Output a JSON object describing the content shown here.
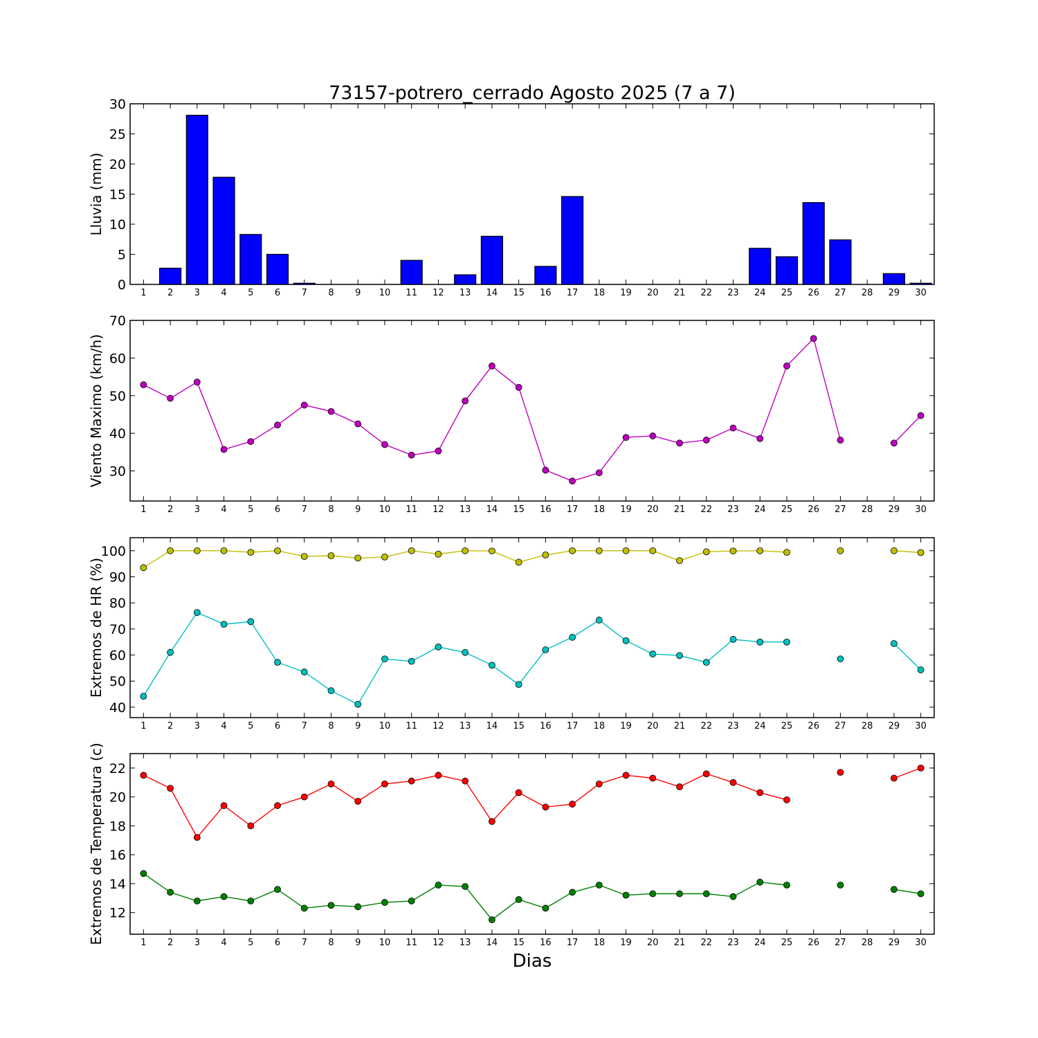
{
  "title": "73157-potrero_cerrado Agosto 2025  (7 a 7)",
  "xlabel": "Dias",
  "days": [
    1,
    2,
    3,
    4,
    5,
    6,
    7,
    8,
    9,
    10,
    11,
    12,
    13,
    14,
    15,
    16,
    17,
    18,
    19,
    20,
    21,
    22,
    23,
    24,
    25,
    26,
    27,
    28,
    29,
    30
  ],
  "chart_data": [
    {
      "type": "bar",
      "ylabel": "Lluvia (mm)",
      "ylim": [
        0,
        30
      ],
      "yticks": [
        0,
        5,
        10,
        15,
        20,
        25,
        30
      ],
      "series": [
        {
          "name": "Lluvia",
          "color": "#0000ff",
          "values": [
            0,
            2.7,
            28.1,
            17.8,
            8.3,
            5.0,
            0.2,
            0,
            0,
            0,
            4.0,
            0,
            1.6,
            8.0,
            0,
            3.0,
            14.6,
            0,
            0,
            0,
            0,
            0,
            0,
            6.0,
            4.6,
            13.6,
            7.4,
            0,
            1.8,
            0.2
          ]
        }
      ]
    },
    {
      "type": "line",
      "ylabel": "Viento Maximo (km/h)",
      "ylim": [
        22,
        70
      ],
      "yticks": [
        30,
        40,
        50,
        60,
        70
      ],
      "series": [
        {
          "name": "Viento Maximo",
          "color": "#bf00bf",
          "values": [
            52.9,
            49.3,
            53.6,
            35.7,
            37.8,
            42.2,
            47.5,
            45.8,
            42.5,
            37.0,
            34.2,
            35.3,
            48.6,
            57.9,
            52.2,
            30.2,
            27.3,
            29.5,
            38.9,
            39.3,
            37.4,
            38.2,
            41.4,
            38.6,
            57.9,
            65.2,
            38.2,
            null,
            37.4,
            44.7
          ]
        }
      ]
    },
    {
      "type": "line",
      "ylabel": "Extremos de HR (%)",
      "ylim": [
        36,
        105
      ],
      "yticks": [
        40,
        50,
        60,
        70,
        80,
        90,
        100
      ],
      "series": [
        {
          "name": "HR max",
          "color": "#bfbf00",
          "values": [
            93.5,
            100,
            100,
            100,
            99.4,
            100,
            97.8,
            98.1,
            97.2,
            97.6,
            100,
            98.7,
            100,
            99.9,
            95.6,
            98.4,
            100,
            100,
            100,
            100,
            96.2,
            99.6,
            99.9,
            100,
            99.4,
            null,
            100,
            null,
            100,
            99.3
          ]
        },
        {
          "name": "HR min",
          "color": "#00bfbf",
          "values": [
            44.2,
            61.0,
            76.3,
            71.8,
            72.8,
            57.2,
            53.5,
            46.3,
            41.1,
            58.5,
            57.6,
            63.1,
            61.0,
            56.1,
            48.7,
            62.0,
            66.8,
            73.4,
            65.5,
            60.4,
            59.8,
            57.2,
            66.0,
            65.0,
            65.0,
            null,
            58.5,
            null,
            64.4,
            54.3
          ]
        }
      ]
    },
    {
      "type": "line",
      "ylabel": "Extremos de Temperatura (c)",
      "ylim": [
        10.5,
        23.0
      ],
      "yticks": [
        12,
        14,
        16,
        18,
        20,
        22
      ],
      "series": [
        {
          "name": "Temp max",
          "color": "#ff0000",
          "values": [
            21.5,
            20.6,
            17.2,
            19.4,
            18.0,
            19.4,
            20.0,
            20.9,
            19.7,
            20.9,
            21.1,
            21.5,
            21.1,
            18.3,
            20.3,
            19.3,
            19.5,
            20.9,
            21.5,
            21.3,
            20.7,
            21.6,
            21.0,
            20.3,
            19.8,
            null,
            21.7,
            null,
            21.3,
            22.0
          ]
        },
        {
          "name": "Temp min",
          "color": "#008000",
          "values": [
            14.7,
            13.4,
            12.8,
            13.1,
            12.8,
            13.6,
            12.3,
            12.5,
            12.4,
            12.7,
            12.8,
            13.9,
            13.8,
            11.5,
            12.9,
            12.3,
            13.4,
            13.9,
            13.2,
            13.3,
            13.3,
            13.3,
            13.1,
            14.1,
            13.9,
            null,
            13.9,
            null,
            13.6,
            13.3
          ]
        }
      ]
    }
  ]
}
